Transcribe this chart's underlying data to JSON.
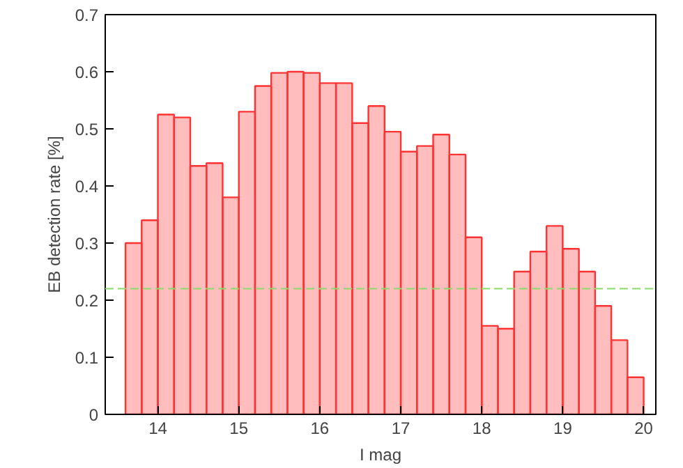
{
  "chart_data": {
    "type": "histogram",
    "xlabel": "I mag",
    "ylabel": "EB detection rate [%]",
    "bins": [
      13.6,
      13.8,
      14.0,
      14.2,
      14.4,
      14.6,
      14.8,
      15.0,
      15.2,
      15.4,
      15.6,
      15.8,
      16.0,
      16.2,
      16.4,
      16.6,
      16.8,
      17.0,
      17.2,
      17.4,
      17.6,
      17.8,
      18.0,
      18.2,
      18.4,
      18.6,
      18.8,
      19.0,
      19.2,
      19.4,
      19.6,
      19.8,
      20.0
    ],
    "values": [
      0.3,
      0.34,
      0.525,
      0.52,
      0.435,
      0.44,
      0.38,
      0.53,
      0.575,
      0.598,
      0.6,
      0.598,
      0.58,
      0.58,
      0.51,
      0.54,
      0.495,
      0.46,
      0.47,
      0.49,
      0.455,
      0.31,
      0.155,
      0.15,
      0.25,
      0.285,
      0.33,
      0.29,
      0.25,
      0.19,
      0.13,
      0.065
    ],
    "color": "#ff3333",
    "xlim": [
      13.35,
      20.15
    ],
    "ylim": [
      0,
      0.7
    ],
    "xticks": [
      14,
      15,
      16,
      17,
      18,
      19,
      20
    ],
    "yticks": [
      0,
      0.1,
      0.2,
      0.3,
      0.4,
      0.5,
      0.6,
      0.7
    ],
    "ref_lines": [
      {
        "axis": "y",
        "value": 0.22,
        "color": "#88dd66",
        "line_style": "dashed"
      }
    ],
    "grid": false
  }
}
